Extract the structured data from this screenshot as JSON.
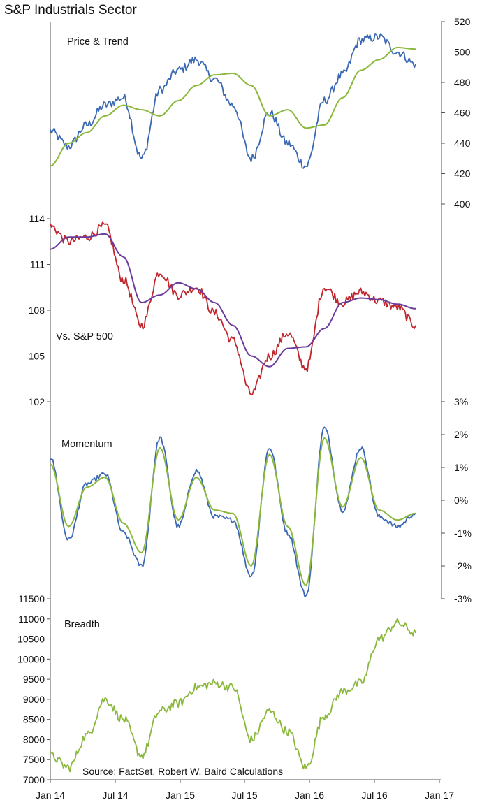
{
  "title": "S&P Industrials Sector",
  "source": "Source: FactSet, Robert W. Baird Calculations",
  "x_axis": {
    "labels": [
      "Jan 14",
      "Jul 14",
      "Jan 15",
      "Jul 15",
      "Jan 16",
      "Jul 16",
      "Jan 17"
    ]
  },
  "colors": {
    "price": "#3a68b5",
    "trend": "#8ab83c",
    "relative": "#c0262c",
    "relative_trend": "#6a3b9c",
    "momentum_fast": "#3a68b5",
    "momentum_slow": "#8ab83c",
    "breadth": "#8ab83c"
  },
  "chart_data": [
    {
      "type": "line",
      "panel_label": "Price & Trend",
      "y_axis_side": "right",
      "ylim": [
        400,
        520
      ],
      "y_ticks": [
        "400",
        "420",
        "440",
        "460",
        "480",
        "500",
        "520"
      ],
      "x": [
        "Jan 14",
        "Mar 14",
        "May 14",
        "Jul 14",
        "Sep 14",
        "Oct 14",
        "Dec 14",
        "Feb 15",
        "Apr 15",
        "Jun 15",
        "Aug 15",
        "Sep 15",
        "Nov 15",
        "Jan 16",
        "Feb 16",
        "Apr 16",
        "Jun 16",
        "Jul 16",
        "Aug 16",
        "Oct 16",
        "Nov 16"
      ],
      "series": [
        {
          "values": [
            448,
            438,
            452,
            465,
            470,
            430,
            475,
            488,
            495,
            482,
            465,
            430,
            460,
            440,
            425,
            468,
            485,
            508,
            510,
            500,
            492
          ]
        },
        {
          "values": [
            425,
            440,
            447,
            458,
            465,
            462,
            458,
            468,
            478,
            485,
            486,
            478,
            458,
            462,
            450,
            452,
            470,
            488,
            495,
            503,
            502
          ]
        }
      ]
    },
    {
      "type": "line",
      "panel_label": "Vs. S&P 500",
      "y_axis_side": "left",
      "ylim": [
        102,
        114
      ],
      "y_ticks": [
        "102",
        "105",
        "108",
        "111",
        "114"
      ],
      "x": [
        "Jan 14",
        "Mar 14",
        "May 14",
        "Jul 14",
        "Sep 14",
        "Oct 14",
        "Dec 14",
        "Feb 15",
        "Apr 15",
        "Jun 15",
        "Aug 15",
        "Sep 15",
        "Nov 15",
        "Jan 16",
        "Feb 16",
        "Apr 16",
        "Jun 16",
        "Jul 16",
        "Aug 16",
        "Oct 16",
        "Nov 16"
      ],
      "series": [
        {
          "values": [
            113.5,
            112.5,
            112.8,
            113.5,
            110,
            107,
            110.5,
            109,
            109.5,
            107.8,
            106,
            102.5,
            105,
            106.5,
            104.2,
            109.5,
            108.5,
            109.2,
            108.6,
            108.2,
            107
          ]
        },
        {
          "values": [
            112,
            112.8,
            112.8,
            113,
            111.5,
            108.5,
            109,
            109.8,
            109.4,
            108.5,
            107,
            105,
            104.3,
            105.5,
            105.6,
            106.8,
            108.5,
            108.8,
            108.7,
            108.4,
            108.1
          ]
        }
      ]
    },
    {
      "type": "line",
      "panel_label": "Momentum",
      "y_axis_side": "right",
      "ylim": [
        -3,
        3
      ],
      "y_ticks": [
        "-3%",
        "-2%",
        "-1%",
        "0%",
        "1%",
        "2%",
        "3%"
      ],
      "x": [
        "Jan 14",
        "Mar 14",
        "May 14",
        "Jul 14",
        "Sep 14",
        "Oct 14",
        "Dec 14",
        "Feb 15",
        "Apr 15",
        "Jun 15",
        "Aug 15",
        "Sep 15",
        "Nov 15",
        "Jan 16",
        "Feb 16",
        "Apr 16",
        "Jun 16",
        "Jul 16",
        "Aug 16",
        "Oct 16",
        "Nov 16"
      ],
      "series": [
        {
          "values": [
            1.3,
            -1.2,
            0.5,
            0.8,
            -1.0,
            -2.0,
            1.9,
            -0.8,
            0.9,
            -0.5,
            -0.6,
            -2.3,
            1.6,
            -1.0,
            -2.9,
            2.2,
            -0.3,
            1.6,
            -0.5,
            -0.8,
            -0.4
          ]
        },
        {
          "values": [
            1.1,
            -0.8,
            0.4,
            0.7,
            -0.7,
            -1.6,
            1.6,
            -0.6,
            0.7,
            -0.3,
            -0.4,
            -2.0,
            1.4,
            -0.8,
            -2.6,
            1.9,
            -0.2,
            1.3,
            -0.3,
            -0.6,
            -0.4
          ]
        }
      ]
    },
    {
      "type": "line",
      "panel_label": "Breadth",
      "y_axis_side": "left",
      "ylim": [
        7000,
        11500
      ],
      "y_ticks": [
        "7000",
        "7500",
        "8000",
        "8500",
        "9000",
        "9500",
        "10000",
        "10500",
        "11000",
        "11500"
      ],
      "x": [
        "Jan 14",
        "Mar 14",
        "May 14",
        "Jul 14",
        "Sep 14",
        "Oct 14",
        "Dec 14",
        "Feb 15",
        "Apr 15",
        "Jun 15",
        "Aug 15",
        "Sep 15",
        "Nov 15",
        "Jan 16",
        "Feb 16",
        "Apr 16",
        "Jun 16",
        "Jul 16",
        "Aug 16",
        "Oct 16",
        "Nov 16"
      ],
      "series": [
        {
          "values": [
            7600,
            7300,
            8100,
            9000,
            8500,
            7600,
            8700,
            8900,
            9300,
            9400,
            9300,
            8000,
            8700,
            8200,
            7300,
            8600,
            9200,
            9400,
            10500,
            10900,
            10650
          ]
        }
      ]
    }
  ]
}
